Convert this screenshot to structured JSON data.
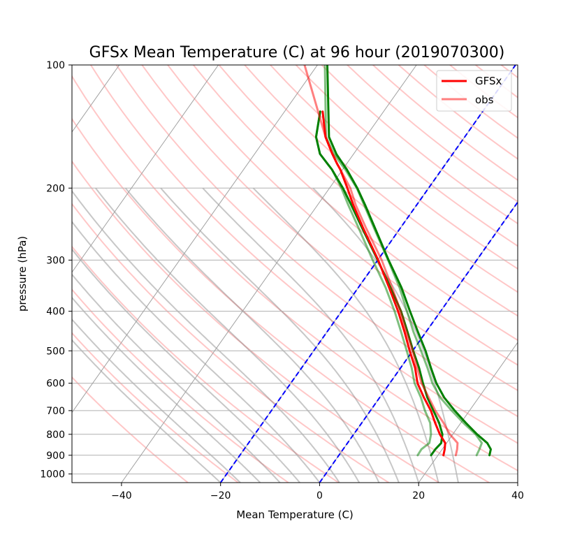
{
  "chart_data": {
    "type": "line",
    "chart_kind": "skew-T log-P",
    "title": "GFSx Mean Temperature (C) at 96 hour (2019070300)",
    "xlabel": "Mean Temperature (C)",
    "ylabel": "pressure (hPa)",
    "xlim": [
      -50,
      40
    ],
    "ylim": [
      1050,
      100
    ],
    "y_scale": "log",
    "grid": true,
    "legend_position": "top-right",
    "x_ticks": [
      -40,
      -20,
      0,
      20,
      40
    ],
    "y_ticks": [
      100,
      200,
      300,
      400,
      500,
      600,
      700,
      800,
      900,
      1000
    ],
    "colors": {
      "gfsx_temperature": "#ff0000",
      "obs_temperature": "#ff7f7f",
      "gfsx_wind": "#008000",
      "obs_wind": "#80c080",
      "isotherm_highlight": "#0000ff",
      "dry_adiabat": "#ffb3b3",
      "moist_adiabat": "#b3b3b3",
      "grid": "#b0b0b0"
    },
    "highlighted_isotherms": [
      -20,
      0
    ],
    "series": [
      {
        "name": "GFSx",
        "kind": "temperature",
        "pressure": [
          900,
          870,
          840,
          800,
          750,
          700,
          650,
          600,
          550,
          500,
          450,
          400,
          350,
          300,
          250,
          220,
          200,
          180,
          175,
          165,
          150,
          130
        ],
        "temperature": [
          21.1,
          20.5,
          19.7,
          17.4,
          14.8,
          12.2,
          8.9,
          5.6,
          2.9,
          -0.6,
          -4.3,
          -8.6,
          -13.8,
          -19.9,
          -27.6,
          -32.8,
          -36.4,
          -40.5,
          -41.8,
          -44.3,
          -48.1,
          -52.3
        ]
      },
      {
        "name": "obs",
        "kind": "temperature",
        "pressure": [
          900,
          870,
          840,
          800,
          750,
          700,
          650,
          600,
          550,
          500,
          450,
          400,
          350,
          300,
          250,
          220,
          200,
          180,
          175,
          165,
          150,
          100
        ],
        "temperature": [
          23.6,
          23.0,
          22.2,
          19.4,
          16.5,
          13.1,
          9.9,
          6.4,
          3.3,
          0.0,
          -3.9,
          -8.1,
          -13.2,
          -19.2,
          -27.0,
          -32.3,
          -35.8,
          -40.5,
          -41.8,
          -44.3,
          -48.1,
          -62.6
        ]
      },
      {
        "kind": "wind",
        "pressure": [
          900,
          870,
          840,
          800,
          750,
          700,
          650,
          600,
          550,
          500,
          450,
          400,
          350,
          300,
          250,
          220,
          200,
          180,
          175,
          165,
          150,
          130
        ],
        "value": [
          15.9,
          15.8,
          16.5,
          15.6,
          13.8,
          11.0,
          8.3,
          5.0,
          2.2,
          -1.2,
          -5.0,
          -9.3,
          -14.5,
          -21.0,
          -28.5,
          -33.8,
          -37.6,
          -42.2,
          -43.7,
          -46.8,
          -50.0,
          -52.8
        ]
      },
      {
        "kind": "wind",
        "pressure": [
          900,
          870,
          840,
          800,
          750,
          700,
          650,
          600,
          550,
          500,
          450,
          400,
          350,
          300,
          250,
          220,
          200,
          180,
          175,
          165,
          150,
          100
        ],
        "value": [
          27.8,
          27.5,
          27.1,
          24.6,
          20.5,
          16.4,
          12.2,
          8.6,
          5.4,
          1.7,
          -2.5,
          -6.8,
          -11.7,
          -17.9,
          -25.4,
          -30.6,
          -34.5,
          -39.5,
          -41.0,
          -44.0,
          -48.0,
          -58.5
        ]
      },
      {
        "kind": "wind",
        "pressure": [
          900,
          870,
          840,
          800,
          750,
          700,
          650,
          600,
          550,
          500,
          450,
          400,
          350,
          300,
          250,
          220,
          200,
          180,
          175,
          165,
          150,
          130
        ],
        "value": [
          18.6,
          18.6,
          18.9,
          17.9,
          15.6,
          12.7,
          9.6,
          6.7,
          3.7,
          0.1,
          -3.7,
          -8.0,
          -13.5,
          -20.0,
          -27.8,
          -33.2,
          -37.3,
          -42.2,
          -43.7,
          -46.8,
          -50.0,
          -52.8
        ]
      },
      {
        "kind": "wind",
        "pressure": [
          900,
          870,
          840,
          800,
          750,
          700,
          650,
          600,
          550,
          500,
          450,
          400,
          350,
          300,
          250,
          220,
          200,
          180,
          175,
          165,
          150,
          100
        ],
        "value": [
          30.4,
          29.8,
          28.2,
          24.9,
          21.0,
          17.0,
          13.0,
          9.4,
          6.1,
          2.6,
          -1.6,
          -6.2,
          -11.3,
          -17.8,
          -25.2,
          -30.4,
          -34.4,
          -39.2,
          -40.6,
          -43.5,
          -47.4,
          -58.0
        ]
      }
    ]
  }
}
